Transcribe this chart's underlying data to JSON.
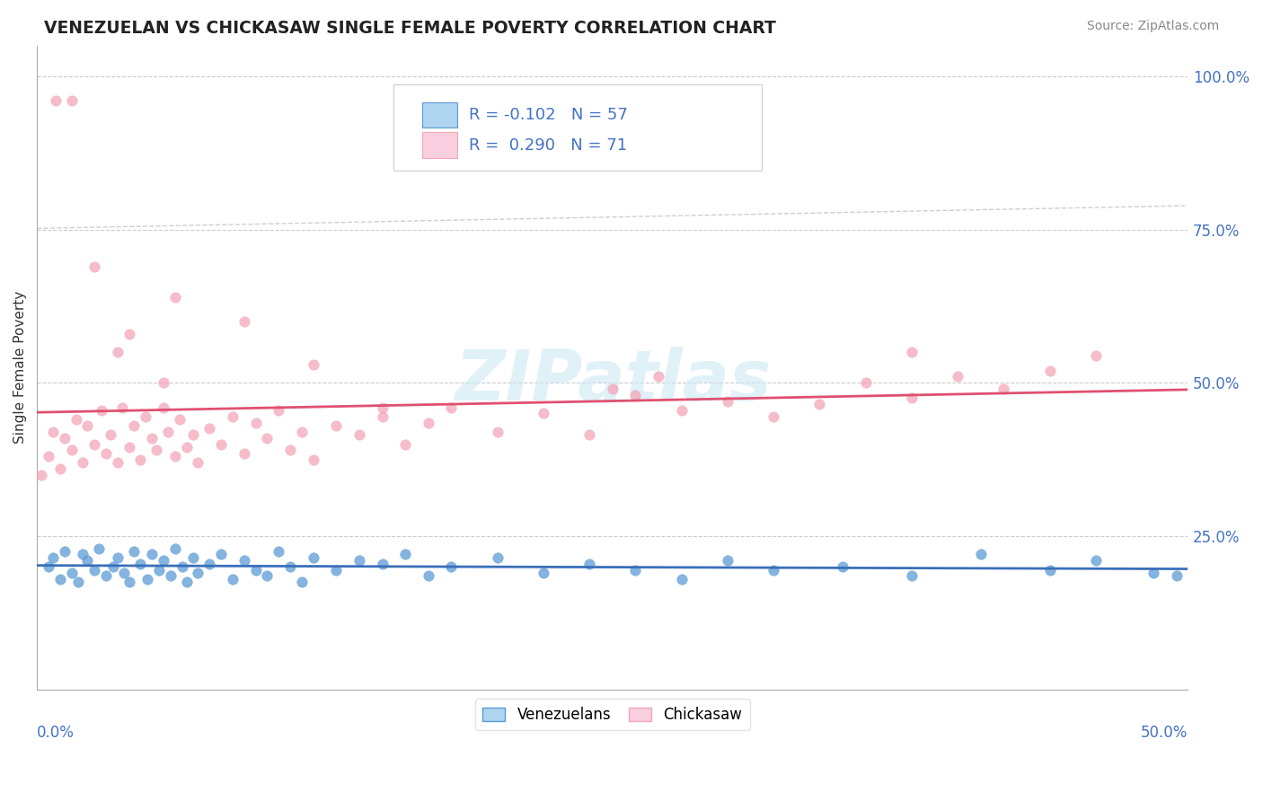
{
  "title": "VENEZUELAN VS CHICKASAW SINGLE FEMALE POVERTY CORRELATION CHART",
  "source": "Source: ZipAtlas.com",
  "ylabel": "Single Female Poverty",
  "ytick_labels": [
    "25.0%",
    "50.0%",
    "75.0%",
    "100.0%"
  ],
  "ytick_values": [
    0.25,
    0.5,
    0.75,
    1.0
  ],
  "xlim": [
    0.0,
    0.5
  ],
  "ylim": [
    0.0,
    1.05
  ],
  "watermark": "ZIPatlas",
  "blue_color": "#5b9bd5",
  "pink_color": "#f4a6b8",
  "pink_solid_color": "#e05070",
  "blue_solid_color": "#3a6fba",
  "grid_color": "#cccccc",
  "venezuelan_x": [
    0.005,
    0.007,
    0.01,
    0.012,
    0.015,
    0.018,
    0.02,
    0.022,
    0.025,
    0.027,
    0.03,
    0.033,
    0.035,
    0.038,
    0.04,
    0.042,
    0.045,
    0.048,
    0.05,
    0.053,
    0.055,
    0.058,
    0.06,
    0.063,
    0.065,
    0.068,
    0.07,
    0.075,
    0.08,
    0.085,
    0.09,
    0.095,
    0.1,
    0.105,
    0.11,
    0.115,
    0.12,
    0.13,
    0.14,
    0.15,
    0.16,
    0.17,
    0.18,
    0.2,
    0.22,
    0.24,
    0.26,
    0.28,
    0.3,
    0.32,
    0.35,
    0.38,
    0.41,
    0.44,
    0.46,
    0.485,
    0.495
  ],
  "venezuelan_y": [
    0.2,
    0.215,
    0.18,
    0.225,
    0.19,
    0.175,
    0.22,
    0.21,
    0.195,
    0.23,
    0.185,
    0.2,
    0.215,
    0.19,
    0.175,
    0.225,
    0.205,
    0.18,
    0.22,
    0.195,
    0.21,
    0.185,
    0.23,
    0.2,
    0.175,
    0.215,
    0.19,
    0.205,
    0.22,
    0.18,
    0.21,
    0.195,
    0.185,
    0.225,
    0.2,
    0.175,
    0.215,
    0.195,
    0.21,
    0.205,
    0.22,
    0.185,
    0.2,
    0.215,
    0.19,
    0.205,
    0.195,
    0.18,
    0.21,
    0.195,
    0.2,
    0.185,
    0.22,
    0.195,
    0.21,
    0.19,
    0.185
  ],
  "chickasaw_x": [
    0.002,
    0.005,
    0.007,
    0.01,
    0.012,
    0.015,
    0.017,
    0.02,
    0.022,
    0.025,
    0.028,
    0.03,
    0.032,
    0.035,
    0.037,
    0.04,
    0.042,
    0.045,
    0.047,
    0.05,
    0.052,
    0.055,
    0.057,
    0.06,
    0.062,
    0.065,
    0.068,
    0.07,
    0.075,
    0.08,
    0.085,
    0.09,
    0.095,
    0.1,
    0.105,
    0.11,
    0.115,
    0.12,
    0.13,
    0.14,
    0.15,
    0.16,
    0.17,
    0.18,
    0.2,
    0.22,
    0.24,
    0.26,
    0.28,
    0.3,
    0.32,
    0.34,
    0.36,
    0.38,
    0.4,
    0.42,
    0.44,
    0.46,
    0.38,
    0.25,
    0.27,
    0.15,
    0.12,
    0.09,
    0.06,
    0.04,
    0.025,
    0.015,
    0.008,
    0.035,
    0.055
  ],
  "chickasaw_y": [
    0.35,
    0.38,
    0.42,
    0.36,
    0.41,
    0.39,
    0.44,
    0.37,
    0.43,
    0.4,
    0.455,
    0.385,
    0.415,
    0.37,
    0.46,
    0.395,
    0.43,
    0.375,
    0.445,
    0.41,
    0.39,
    0.46,
    0.42,
    0.38,
    0.44,
    0.395,
    0.415,
    0.37,
    0.425,
    0.4,
    0.445,
    0.385,
    0.435,
    0.41,
    0.455,
    0.39,
    0.42,
    0.375,
    0.43,
    0.415,
    0.445,
    0.4,
    0.435,
    0.46,
    0.42,
    0.45,
    0.415,
    0.48,
    0.455,
    0.47,
    0.445,
    0.465,
    0.5,
    0.475,
    0.51,
    0.49,
    0.52,
    0.545,
    0.55,
    0.49,
    0.51,
    0.46,
    0.53,
    0.6,
    0.64,
    0.58,
    0.69,
    0.96,
    0.96,
    0.55,
    0.5
  ]
}
